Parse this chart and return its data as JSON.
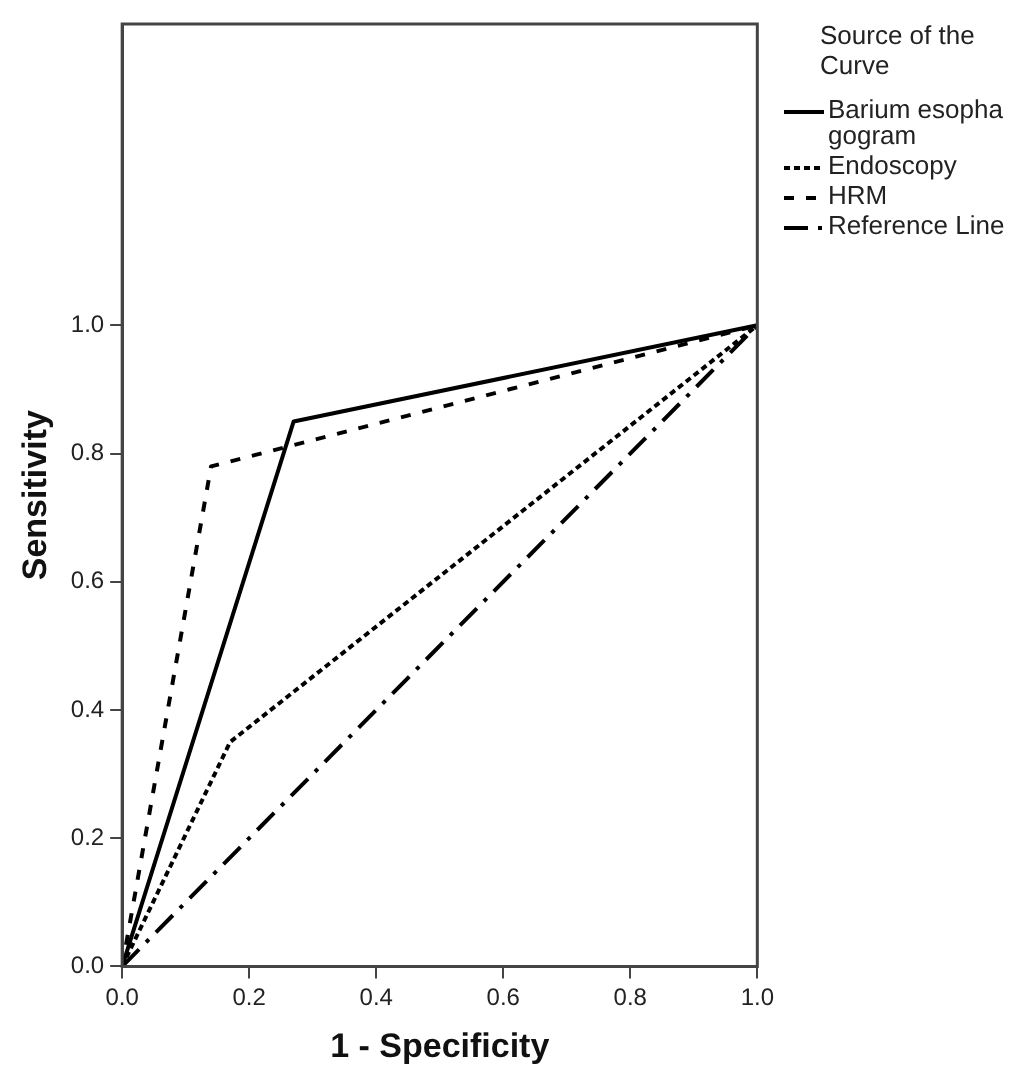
{
  "chart_data": {
    "type": "line",
    "xlabel": "1 - Specificity",
    "ylabel": "Sensitivity",
    "legend_title": "Source of the Curve",
    "legend": "right",
    "grid": false,
    "marker": "none",
    "xlim": [
      0,
      1
    ],
    "ylim": [
      0,
      1.47
    ],
    "xticks": [
      {
        "value": 0,
        "label": "0.0"
      },
      {
        "value": 0.2,
        "label": "0.2"
      },
      {
        "value": 0.4,
        "label": "0.4"
      },
      {
        "value": 0.6,
        "label": "0.6"
      },
      {
        "value": 0.8,
        "label": "0.8"
      },
      {
        "value": 1,
        "label": "1.0"
      }
    ],
    "yticks": [
      {
        "value": 0,
        "label": "0.0"
      },
      {
        "value": 0.2,
        "label": "0.2"
      },
      {
        "value": 0.4,
        "label": "0.4"
      },
      {
        "value": 0.6,
        "label": "0.6"
      },
      {
        "value": 0.8,
        "label": "0.8"
      },
      {
        "value": 1,
        "label": "1.0"
      }
    ],
    "series": [
      {
        "name": "Barium esophagogram",
        "color": "#000000",
        "line_style": "solid",
        "x": [
          0,
          0.27,
          1
        ],
        "values": [
          0,
          0.85,
          1
        ]
      },
      {
        "name": "Endoscopy",
        "color": "#000000",
        "line_style": "dotted",
        "x": [
          0,
          0.17,
          1
        ],
        "values": [
          0,
          0.35,
          1
        ]
      },
      {
        "name": "HRM",
        "color": "#000000",
        "line_style": "dashed",
        "x": [
          0,
          0.14,
          1
        ],
        "values": [
          0,
          0.78,
          1
        ]
      },
      {
        "name": "Reference Line",
        "color": "#000000",
        "line_style": "dashdot",
        "x": [
          0,
          1
        ],
        "values": [
          0,
          1
        ]
      }
    ]
  }
}
